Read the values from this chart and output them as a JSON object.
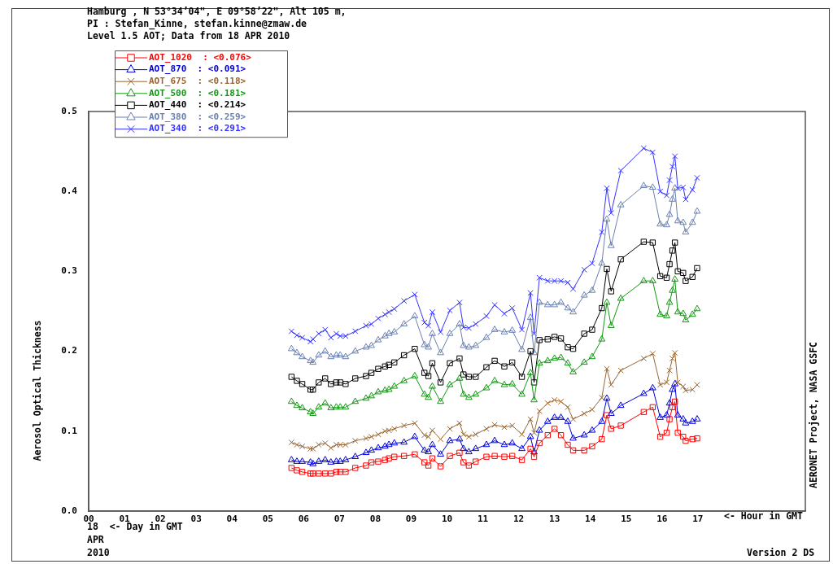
{
  "chart_data": {
    "type": "line",
    "title": "Hamburg , N 53°34’04\", E 09°58’22\", Alt 105 m,",
    "subtitle": "PI : Stefan_Kinne, stefan.kinne@zmaw.de",
    "xlabel": "<- Hour in GMT",
    "ylabel": "Aerosol Optical Thickness",
    "annotations": [
      "Level 1.5 AOT; Data from 18 APR 2010",
      "18  <- Day in GMT",
      "APR",
      "2010",
      "AERONET Project, NASA GSFC",
      "Version 2 DS"
    ],
    "x": [
      5.66,
      5.81,
      5.96,
      6.19,
      6.26,
      6.42,
      6.6,
      6.76,
      6.91,
      7.02,
      7.17,
      7.44,
      7.74,
      7.89,
      8.08,
      8.27,
      8.38,
      8.53,
      8.8,
      9.1,
      9.37,
      9.48,
      9.59,
      9.82,
      10.08,
      10.35,
      10.46,
      10.61,
      10.8,
      11.1,
      11.33,
      11.6,
      11.82,
      12.09,
      12.33,
      12.43,
      12.58,
      12.81,
      13.0,
      13.18,
      13.37,
      13.52,
      13.83,
      14.05,
      14.32,
      14.46,
      14.58,
      14.85,
      15.49,
      15.74,
      15.95,
      16.13,
      16.21,
      16.29,
      16.36,
      16.44,
      16.59,
      16.66,
      16.85,
      16.98
    ],
    "series": [
      {
        "name": "AOT_1020  : <0.076>",
        "color": "#ff0000",
        "marker": "square",
        "values": [
          0.054,
          0.051,
          0.049,
          0.047,
          0.047,
          0.047,
          0.047,
          0.047,
          0.049,
          0.049,
          0.049,
          0.054,
          0.057,
          0.061,
          0.062,
          0.064,
          0.066,
          0.068,
          0.069,
          0.071,
          0.061,
          0.057,
          0.066,
          0.056,
          0.069,
          0.073,
          0.061,
          0.057,
          0.062,
          0.068,
          0.069,
          0.068,
          0.069,
          0.064,
          0.078,
          0.068,
          0.085,
          0.095,
          0.103,
          0.095,
          0.083,
          0.076,
          0.076,
          0.081,
          0.09,
          0.12,
          0.103,
          0.107,
          0.124,
          0.13,
          0.093,
          0.098,
          0.115,
          0.13,
          0.137,
          0.098,
          0.093,
          0.088,
          0.09,
          0.091
        ]
      },
      {
        "name": "AOT_870  : <0.091>",
        "color": "#0000dd",
        "marker": "triangle",
        "values": [
          0.064,
          0.062,
          0.062,
          0.061,
          0.059,
          0.062,
          0.064,
          0.061,
          0.062,
          0.062,
          0.064,
          0.068,
          0.073,
          0.076,
          0.079,
          0.081,
          0.083,
          0.085,
          0.086,
          0.093,
          0.076,
          0.074,
          0.083,
          0.071,
          0.088,
          0.09,
          0.078,
          0.074,
          0.078,
          0.083,
          0.088,
          0.083,
          0.085,
          0.078,
          0.093,
          0.074,
          0.101,
          0.112,
          0.117,
          0.117,
          0.112,
          0.091,
          0.095,
          0.101,
          0.112,
          0.141,
          0.122,
          0.132,
          0.147,
          0.154,
          0.117,
          0.12,
          0.135,
          0.152,
          0.159,
          0.12,
          0.115,
          0.11,
          0.112,
          0.115
        ]
      },
      {
        "name": "AOT_675  : <0.118>",
        "color": "#996633",
        "marker": "cross",
        "values": [
          0.086,
          0.083,
          0.081,
          0.078,
          0.078,
          0.083,
          0.085,
          0.079,
          0.083,
          0.083,
          0.083,
          0.088,
          0.091,
          0.093,
          0.096,
          0.1,
          0.101,
          0.103,
          0.107,
          0.11,
          0.095,
          0.093,
          0.101,
          0.09,
          0.103,
          0.11,
          0.096,
          0.093,
          0.096,
          0.103,
          0.108,
          0.105,
          0.107,
          0.096,
          0.115,
          0.098,
          0.125,
          0.135,
          0.139,
          0.137,
          0.13,
          0.115,
          0.122,
          0.127,
          0.142,
          0.178,
          0.158,
          0.176,
          0.191,
          0.197,
          0.158,
          0.161,
          0.176,
          0.191,
          0.198,
          0.161,
          0.156,
          0.151,
          0.152,
          0.158
        ]
      },
      {
        "name": "AOT_500  : <0.181>",
        "color": "#119911",
        "marker": "triangle",
        "values": [
          0.137,
          0.132,
          0.129,
          0.124,
          0.122,
          0.13,
          0.135,
          0.129,
          0.13,
          0.13,
          0.13,
          0.137,
          0.141,
          0.144,
          0.149,
          0.151,
          0.152,
          0.156,
          0.163,
          0.169,
          0.146,
          0.142,
          0.156,
          0.137,
          0.158,
          0.166,
          0.146,
          0.142,
          0.146,
          0.154,
          0.163,
          0.158,
          0.159,
          0.146,
          0.173,
          0.139,
          0.185,
          0.188,
          0.191,
          0.192,
          0.185,
          0.174,
          0.186,
          0.193,
          0.215,
          0.261,
          0.232,
          0.266,
          0.288,
          0.288,
          0.246,
          0.244,
          0.261,
          0.276,
          0.29,
          0.249,
          0.247,
          0.239,
          0.246,
          0.253
        ]
      },
      {
        "name": "AOT_440  : <0.214>",
        "color": "#000000",
        "marker": "square",
        "values": [
          0.168,
          0.163,
          0.159,
          0.152,
          0.152,
          0.161,
          0.166,
          0.159,
          0.161,
          0.161,
          0.159,
          0.166,
          0.169,
          0.173,
          0.178,
          0.181,
          0.183,
          0.186,
          0.195,
          0.203,
          0.173,
          0.169,
          0.185,
          0.161,
          0.185,
          0.191,
          0.171,
          0.168,
          0.168,
          0.18,
          0.188,
          0.181,
          0.186,
          0.168,
          0.2,
          0.161,
          0.214,
          0.215,
          0.218,
          0.216,
          0.205,
          0.203,
          0.222,
          0.227,
          0.254,
          0.303,
          0.275,
          0.315,
          0.337,
          0.336,
          0.294,
          0.292,
          0.309,
          0.326,
          0.336,
          0.3,
          0.298,
          0.288,
          0.293,
          0.304
        ]
      },
      {
        "name": "AOT_380  : <0.259>",
        "color": "#6a80b0",
        "marker": "triangle",
        "values": [
          0.203,
          0.198,
          0.193,
          0.188,
          0.186,
          0.195,
          0.2,
          0.193,
          0.195,
          0.195,
          0.193,
          0.2,
          0.205,
          0.207,
          0.214,
          0.219,
          0.222,
          0.224,
          0.234,
          0.244,
          0.208,
          0.205,
          0.222,
          0.198,
          0.222,
          0.234,
          0.207,
          0.205,
          0.207,
          0.217,
          0.227,
          0.224,
          0.226,
          0.202,
          0.242,
          0.198,
          0.261,
          0.258,
          0.258,
          0.261,
          0.254,
          0.249,
          0.27,
          0.276,
          0.31,
          0.365,
          0.332,
          0.383,
          0.407,
          0.405,
          0.359,
          0.358,
          0.371,
          0.39,
          0.404,
          0.363,
          0.361,
          0.349,
          0.361,
          0.375
        ]
      },
      {
        "name": "AOT_340  : <0.291>",
        "color": "#3333ff",
        "marker": "cross",
        "values": [
          0.225,
          0.22,
          0.217,
          0.212,
          0.215,
          0.222,
          0.227,
          0.217,
          0.222,
          0.219,
          0.219,
          0.225,
          0.232,
          0.234,
          0.241,
          0.246,
          0.249,
          0.253,
          0.263,
          0.271,
          0.236,
          0.232,
          0.249,
          0.224,
          0.251,
          0.261,
          0.23,
          0.229,
          0.234,
          0.244,
          0.258,
          0.247,
          0.254,
          0.227,
          0.273,
          0.222,
          0.292,
          0.288,
          0.288,
          0.288,
          0.286,
          0.278,
          0.302,
          0.31,
          0.349,
          0.404,
          0.373,
          0.426,
          0.454,
          0.449,
          0.4,
          0.395,
          0.414,
          0.431,
          0.444,
          0.404,
          0.405,
          0.39,
          0.402,
          0.417
        ]
      }
    ],
    "xlim": [
      0,
      20
    ],
    "xticks": [
      {
        "value": 0,
        "label": "00"
      },
      {
        "value": 1,
        "label": "01"
      },
      {
        "value": 2,
        "label": "02"
      },
      {
        "value": 3,
        "label": "03"
      },
      {
        "value": 4,
        "label": "04"
      },
      {
        "value": 5,
        "label": "05"
      },
      {
        "value": 6,
        "label": "06"
      },
      {
        "value": 7,
        "label": "07"
      },
      {
        "value": 8,
        "label": "08"
      },
      {
        "value": 9,
        "label": "09"
      },
      10,
      11,
      12,
      13,
      14,
      15,
      16,
      17
    ],
    "ylim": [
      0,
      0.5
    ],
    "yticks": [
      {
        "value": 0,
        "label": "0.0"
      },
      0.1,
      0.2,
      0.3,
      0.4,
      0.5
    ],
    "grid": false,
    "legend": "top left",
    "line_style": "solid"
  }
}
